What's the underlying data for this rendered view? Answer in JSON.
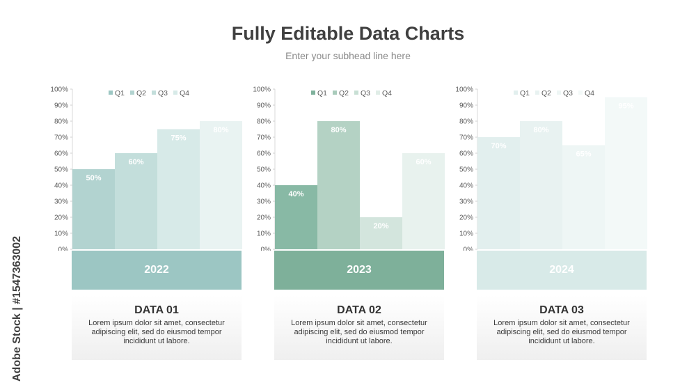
{
  "header": {
    "title": "Fully Editable Data Charts",
    "subtitle": "Enter your subhead line here"
  },
  "watermark": {
    "text": "Adobe Stock | #1547363002"
  },
  "chart_data": [
    {
      "type": "bar",
      "categories": [
        "Q1",
        "Q2",
        "Q3",
        "Q4"
      ],
      "values": [
        50,
        60,
        75,
        80
      ],
      "data_labels": [
        "50%",
        "60%",
        "75%",
        "80%"
      ],
      "yticks": [
        "0%",
        "10%",
        "20%",
        "30%",
        "40%",
        "50%",
        "60%",
        "70%",
        "80%",
        "90%",
        "100%"
      ],
      "ylim": [
        0,
        100
      ],
      "legend": "top",
      "colors": [
        "#b2d3d0",
        "#c3dedb",
        "#d7eae8",
        "#e9f3f2"
      ],
      "legend_colors": [
        "#9dc7c3",
        "#b2d3d0",
        "#c3dedb",
        "#d7eae8"
      ],
      "year": "2022",
      "year_color": "#9cc6c3",
      "card_title": "DATA 01",
      "card_text": "Lorem ipsum dolor sit amet, consectetur adipiscing elit, sed do eiusmod tempor incididunt ut labore."
    },
    {
      "type": "bar",
      "categories": [
        "Q1",
        "Q2",
        "Q3",
        "Q4"
      ],
      "values": [
        40,
        80,
        20,
        60
      ],
      "data_labels": [
        "40%",
        "80%",
        "20%",
        "60%"
      ],
      "yticks": [
        "0%",
        "10%",
        "20%",
        "30%",
        "40%",
        "50%",
        "60%",
        "70%",
        "80%",
        "90%",
        "100%"
      ],
      "ylim": [
        0,
        100
      ],
      "legend": "top",
      "colors": [
        "#88b9a5",
        "#b4d2c4",
        "#d3e5dd",
        "#e8f2ee"
      ],
      "legend_colors": [
        "#7fb19c",
        "#a9cbbb",
        "#c8dfd4",
        "#e0ede7"
      ],
      "year": "2023",
      "year_color": "#7eb09a",
      "card_title": "DATA 02",
      "card_text": "Lorem ipsum dolor sit amet, consectetur adipiscing elit, sed do eiusmod tempor incididunt ut labore."
    },
    {
      "type": "bar",
      "categories": [
        "Q1",
        "Q2",
        "Q3",
        "Q4"
      ],
      "values": [
        70,
        80,
        65,
        95
      ],
      "data_labels": [
        "70%",
        "80%",
        "65%",
        "95%"
      ],
      "yticks": [
        "0%",
        "10%",
        "20%",
        "30%",
        "40%",
        "50%",
        "60%",
        "70%",
        "80%",
        "90%",
        "100%"
      ],
      "ylim": [
        0,
        100
      ],
      "legend": "top",
      "colors": [
        "#e2efee",
        "#e8f2f1",
        "#eef6f5",
        "#f3f9f8"
      ],
      "legend_colors": [
        "#e2efee",
        "#e8f2f1",
        "#eef6f5",
        "#f3f9f8"
      ],
      "year": "2024",
      "year_color": "#d8eae8",
      "card_title": "DATA 03",
      "card_text": "Lorem ipsum dolor sit amet, consectetur adipiscing elit, sed do eiusmod tempor incididunt ut labore."
    }
  ]
}
